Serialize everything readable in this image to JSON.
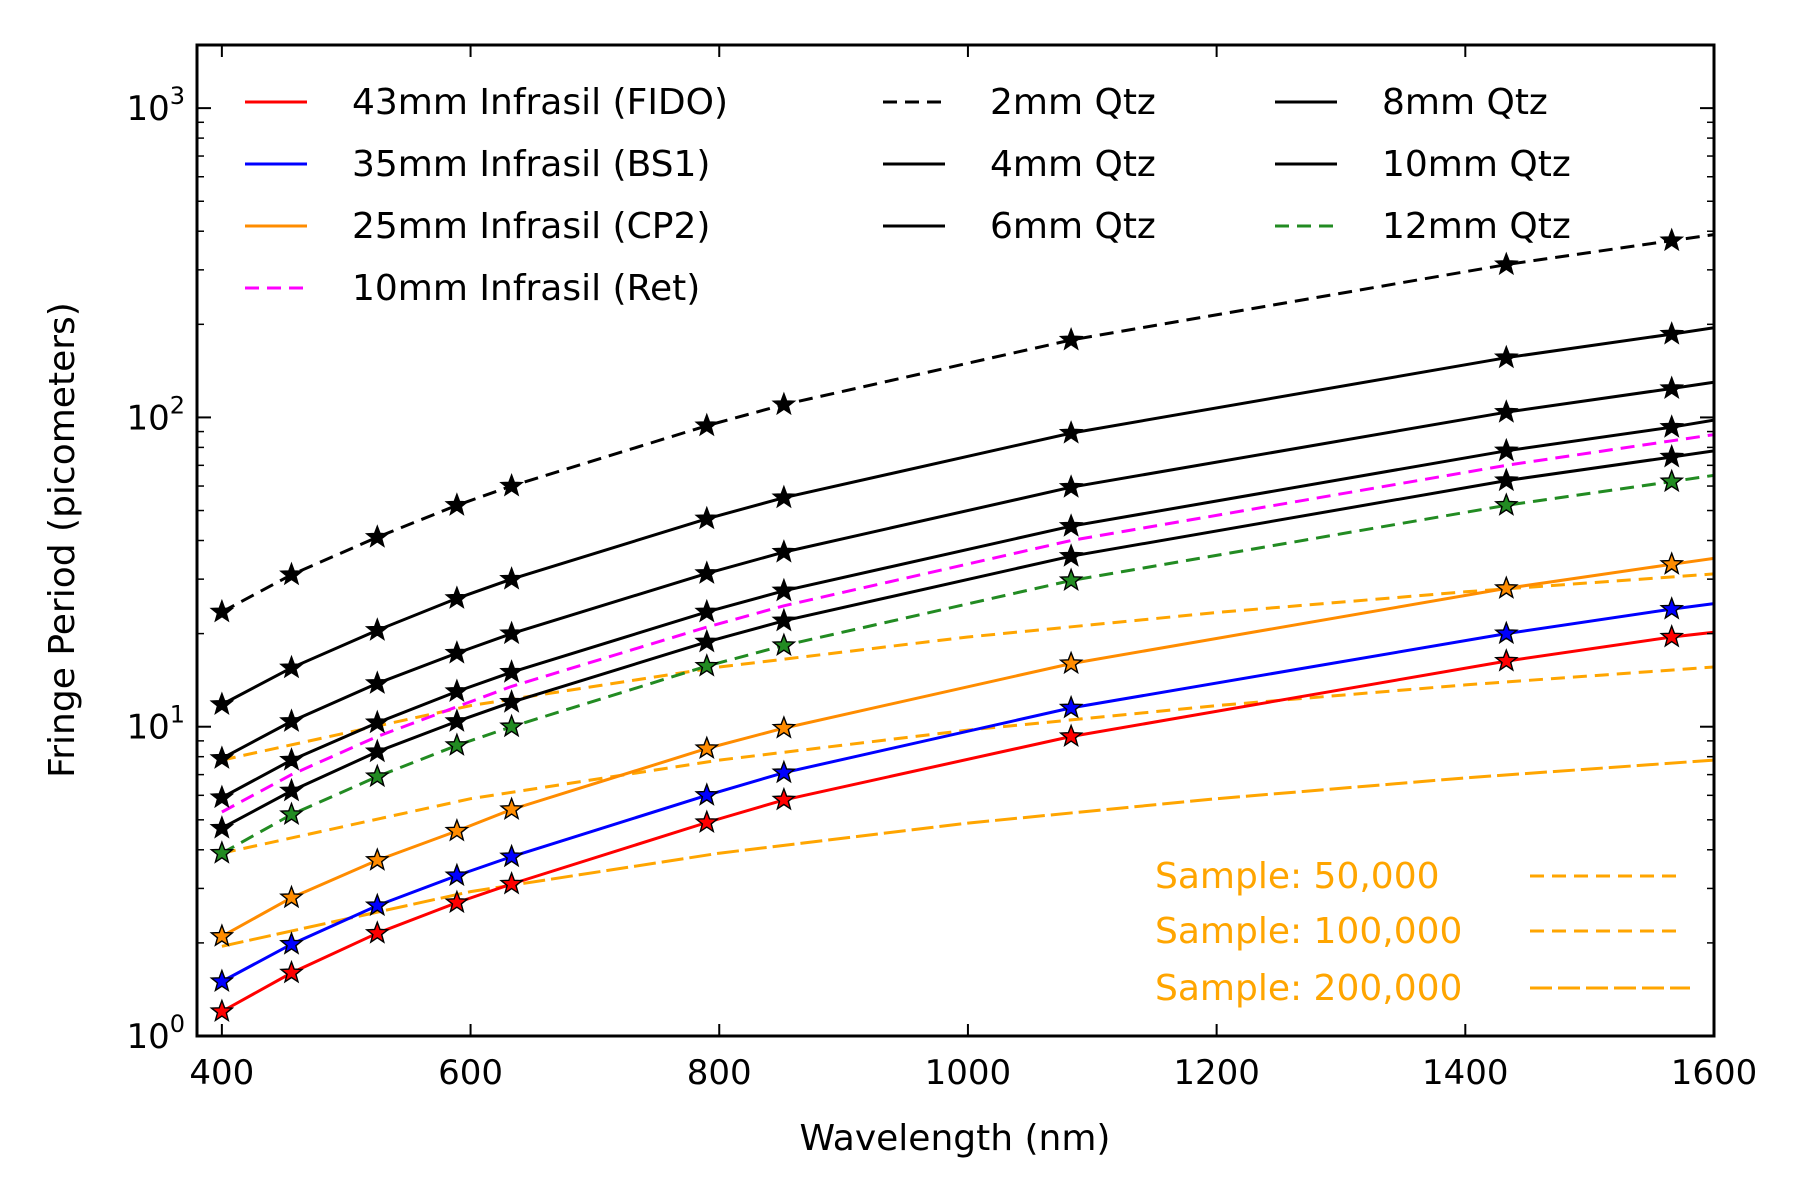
{
  "chart_data": {
    "type": "line",
    "xlabel": "Wavelength (nm)",
    "ylabel": "Fringe Period (picometers)",
    "xlim": [
      380,
      1600
    ],
    "ylim": [
      1,
      1600
    ],
    "yscale": "log",
    "grid": false,
    "x_ticks": [
      400,
      600,
      800,
      1000,
      1200,
      1400,
      1600
    ],
    "x_tick_labels": [
      "400",
      "600",
      "800",
      "1000",
      "1200",
      "1400",
      "1600"
    ],
    "y_ticks": [
      1,
      10,
      100,
      1000
    ],
    "y_tick_labels": [
      {
        "base": "10",
        "exp": "0"
      },
      {
        "base": "10",
        "exp": "1"
      },
      {
        "base": "10",
        "exp": "2"
      },
      {
        "base": "10",
        "exp": "3"
      }
    ],
    "marker_x": [
      400,
      456,
      525,
      589,
      633,
      790,
      852,
      1083,
      1433,
      1566
    ],
    "series": [
      {
        "name": "43mm Infrasil (FIDO)",
        "color": "#ff0000",
        "dash": "solid",
        "markers": true,
        "x": [
          400,
          456,
          525,
          589,
          633,
          790,
          852,
          1083,
          1433,
          1566,
          1600
        ],
        "values": [
          1.2,
          1.6,
          2.15,
          2.7,
          3.1,
          4.9,
          5.8,
          9.3,
          16.3,
          19.5,
          20.2
        ]
      },
      {
        "name": "35mm Infrasil (BS1)",
        "color": "#0000ff",
        "dash": "solid",
        "markers": true,
        "x": [
          400,
          456,
          525,
          589,
          633,
          790,
          852,
          1083,
          1433,
          1566,
          1600
        ],
        "values": [
          1.5,
          1.98,
          2.64,
          3.3,
          3.8,
          6.0,
          7.1,
          11.5,
          20.0,
          24.0,
          25.0
        ]
      },
      {
        "name": "25mm Infrasil (CP2)",
        "color": "#ff8c00",
        "dash": "solid",
        "markers": true,
        "x": [
          400,
          456,
          525,
          589,
          633,
          790,
          852,
          1083,
          1433,
          1566,
          1600
        ],
        "values": [
          2.1,
          2.8,
          3.7,
          4.6,
          5.4,
          8.5,
          9.9,
          16.0,
          28.0,
          33.5,
          35.0
        ]
      },
      {
        "name": "10mm Infrasil (Ret)",
        "color": "#ff00ff",
        "dash": "dashed",
        "markers": false,
        "x": [
          400,
          456,
          525,
          589,
          633,
          790,
          852,
          1083,
          1433,
          1566,
          1600
        ],
        "values": [
          5.3,
          7.0,
          9.3,
          11.6,
          13.5,
          21.0,
          24.6,
          40.0,
          70.0,
          84.0,
          88.0
        ]
      },
      {
        "name": "2mm Qtz",
        "color": "#000000",
        "dash": "dashed",
        "markers": true,
        "x": [
          400,
          456,
          525,
          589,
          633,
          790,
          852,
          1083,
          1433,
          1566,
          1600
        ],
        "values": [
          23.5,
          31.0,
          41.0,
          52.0,
          60.0,
          94.0,
          110.0,
          178.0,
          312.0,
          373.0,
          390.0
        ]
      },
      {
        "name": "4mm Qtz",
        "color": "#000000",
        "dash": "solid",
        "markers": true,
        "x": [
          400,
          456,
          525,
          589,
          633,
          790,
          852,
          1083,
          1433,
          1566,
          1600
        ],
        "values": [
          11.8,
          15.5,
          20.5,
          26.0,
          30.0,
          47.0,
          55.0,
          89.0,
          156.0,
          186.0,
          195.0
        ]
      },
      {
        "name": "6mm Qtz",
        "color": "#000000",
        "dash": "solid",
        "markers": true,
        "x": [
          400,
          456,
          525,
          589,
          633,
          790,
          852,
          1083,
          1433,
          1566,
          1600
        ],
        "values": [
          7.9,
          10.4,
          13.8,
          17.3,
          20.0,
          31.3,
          36.7,
          59.5,
          104.0,
          124.0,
          130.0
        ]
      },
      {
        "name": "8mm Qtz",
        "color": "#000000",
        "dash": "solid",
        "markers": true,
        "x": [
          400,
          456,
          525,
          589,
          633,
          790,
          852,
          1083,
          1433,
          1566,
          1600
        ],
        "values": [
          5.9,
          7.8,
          10.3,
          13.0,
          15.0,
          23.5,
          27.5,
          44.5,
          78.0,
          93.0,
          98.0
        ]
      },
      {
        "name": "10mm Qtz",
        "color": "#000000",
        "dash": "solid",
        "markers": true,
        "x": [
          400,
          456,
          525,
          589,
          633,
          790,
          852,
          1083,
          1433,
          1566,
          1600
        ],
        "values": [
          4.7,
          6.2,
          8.3,
          10.4,
          12.0,
          18.8,
          22.0,
          35.6,
          62.5,
          74.5,
          78.0
        ]
      },
      {
        "name": "12mm Qtz",
        "color": "#228b22",
        "dash": "dashed",
        "markers": true,
        "x": [
          400,
          456,
          525,
          589,
          633,
          790,
          852,
          1083,
          1433,
          1566,
          1600
        ],
        "values": [
          3.9,
          5.2,
          6.9,
          8.7,
          10.0,
          15.7,
          18.3,
          29.7,
          52.0,
          62.0,
          65.0
        ]
      }
    ],
    "sample_series": [
      {
        "name": "Sample: 50,000",
        "color": "#ffa500",
        "dash": "dashed",
        "x": [
          400,
          600,
          800,
          1000,
          1200,
          1400,
          1600
        ],
        "values": [
          7.8,
          11.7,
          15.6,
          19.5,
          23.4,
          27.3,
          31.2
        ]
      },
      {
        "name": "Sample: 100,000",
        "color": "#ffa500",
        "dash": "dashed",
        "x": [
          400,
          600,
          800,
          1000,
          1200,
          1400,
          1600
        ],
        "values": [
          3.9,
          5.85,
          7.8,
          9.75,
          11.7,
          13.65,
          15.6
        ]
      },
      {
        "name": "Sample: 200,000",
        "color": "#ffa500",
        "dash": "longdash",
        "x": [
          400,
          600,
          800,
          1000,
          1200,
          1400,
          1600
        ],
        "values": [
          1.95,
          2.93,
          3.9,
          4.88,
          5.85,
          6.83,
          7.8
        ]
      }
    ],
    "legend": {
      "placement": "top",
      "columns": [
        [
          "43mm Infrasil (FIDO)",
          "35mm Infrasil (BS1)",
          "25mm Infrasil (CP2)",
          "10mm Infrasil (Ret)"
        ],
        [
          "2mm Qtz",
          "4mm Qtz",
          "6mm Qtz"
        ],
        [
          "8mm Qtz",
          "10mm Qtz",
          "12mm Qtz"
        ]
      ]
    },
    "sample_legend_placement": "bottom-right"
  }
}
